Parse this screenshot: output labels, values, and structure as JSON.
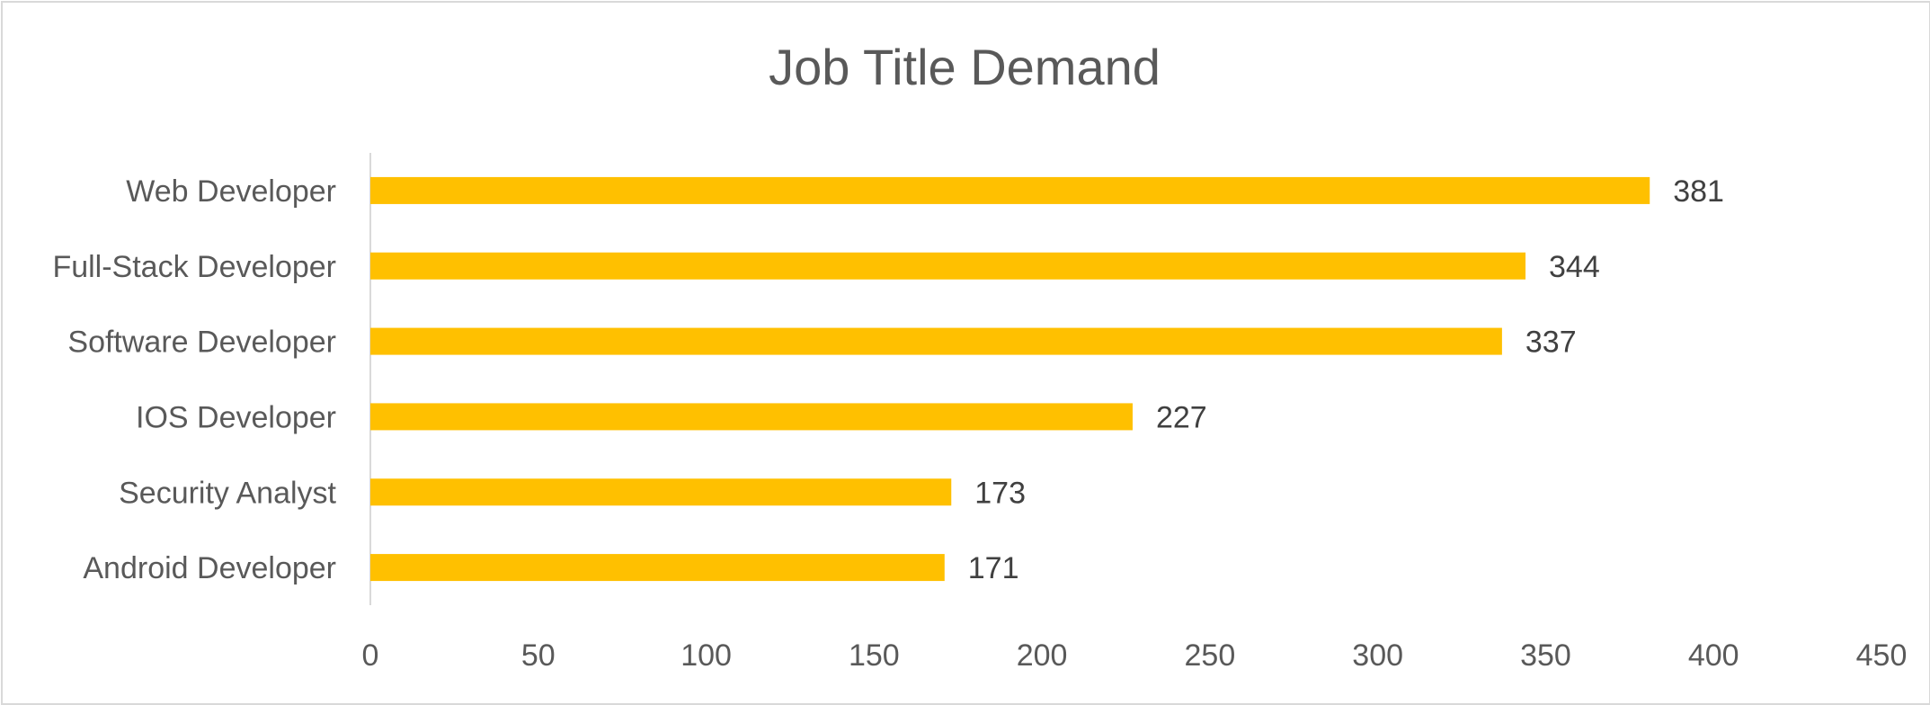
{
  "chart_data": {
    "type": "bar",
    "orientation": "horizontal",
    "title": "Job Title Demand",
    "categories": [
      "Web Developer",
      "Full-Stack Developer",
      "Software Developer",
      "IOS Developer",
      "Security Analyst",
      "Android Developer"
    ],
    "values": [
      381,
      344,
      337,
      227,
      173,
      171
    ],
    "xlim": [
      0,
      450
    ],
    "xticks": [
      0,
      50,
      100,
      150,
      200,
      250,
      300,
      350,
      400,
      450
    ],
    "bar_color": "#FFC000",
    "data_labels": true,
    "grid": false,
    "legend": "none"
  }
}
